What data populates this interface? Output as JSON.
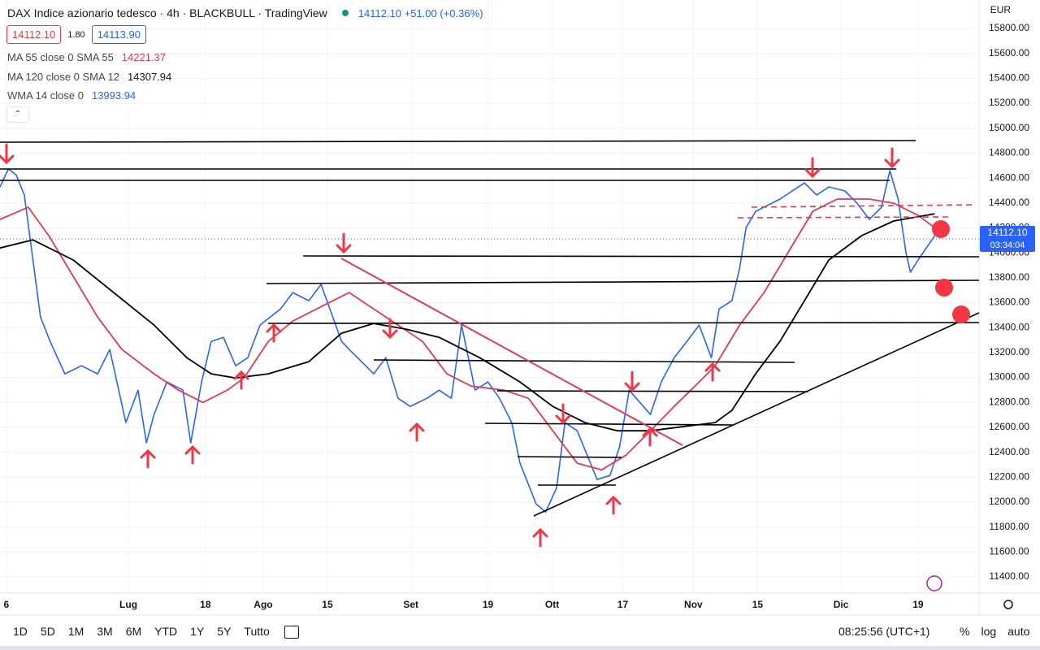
{
  "header": {
    "title": "DAX Indice azionario tedesco · 4h · BLACKBULL · TradingView",
    "quote": "14112.10 +51.00 (+0.36%)",
    "bid": "14112.10",
    "spread": "1.80",
    "ask": "14113.90"
  },
  "indicators": [
    {
      "label": "MA 55 close 0 SMA 55",
      "value": "14221.37"
    },
    {
      "label": "MA 120 close 0 SMA 12",
      "value": "14307.94"
    },
    {
      "label": "WMA 14 close 0",
      "value": "13993.94"
    }
  ],
  "currency": "EUR",
  "toolbar": {
    "ranges": [
      "1D",
      "5D",
      "1M",
      "3M",
      "6M",
      "YTD",
      "1Y",
      "5Y",
      "Tutto"
    ],
    "clock": "08:25:56 (UTC+1)",
    "options": [
      "%",
      "log",
      "auto"
    ]
  },
  "chart_data": {
    "type": "line",
    "ylim": [
      11270,
      16028
    ],
    "yticks": [
      {
        "value": 11400,
        "label": "11400.00"
      },
      {
        "value": 11600,
        "label": "11600.00"
      },
      {
        "value": 11800,
        "label": "11800.00"
      },
      {
        "value": 12000,
        "label": "12000.00"
      },
      {
        "value": 12200,
        "label": "12200.00"
      },
      {
        "value": 12400,
        "label": "12400.00"
      },
      {
        "value": 12600,
        "label": "12600.00"
      },
      {
        "value": 12800,
        "label": "12800.00"
      },
      {
        "value": 13000,
        "label": "13000.00"
      },
      {
        "value": 13200,
        "label": "13200.00"
      },
      {
        "value": 13400,
        "label": "13400.00"
      },
      {
        "value": 13600,
        "label": "13600.00"
      },
      {
        "value": 13800,
        "label": "13800.00"
      },
      {
        "value": 14000,
        "label": "14000.00"
      },
      {
        "value": 14200,
        "label": "14200.00"
      },
      {
        "value": 14400,
        "label": "14400.00"
      },
      {
        "value": 14600,
        "label": "14600.00"
      },
      {
        "value": 14800,
        "label": "14800.00"
      },
      {
        "value": 15000,
        "label": "15000.00"
      },
      {
        "value": 15200,
        "label": "15200.00"
      },
      {
        "value": 15400,
        "label": "15400.00"
      },
      {
        "value": 15600,
        "label": "15600.00"
      },
      {
        "value": 15800,
        "label": "15800.00"
      }
    ],
    "xlim": [
      -1,
      151.5
    ],
    "xticks": [
      {
        "value": 0,
        "label": "6"
      },
      {
        "value": 19,
        "label": "Lug"
      },
      {
        "value": 31,
        "label": "18"
      },
      {
        "value": 40,
        "label": "Ago"
      },
      {
        "value": 50,
        "label": "15"
      },
      {
        "value": 63,
        "label": "Set"
      },
      {
        "value": 75,
        "label": "19"
      },
      {
        "value": 85,
        "label": "Ott"
      },
      {
        "value": 96,
        "label": "17"
      },
      {
        "value": 107,
        "label": "Nov"
      },
      {
        "value": 117,
        "label": "15"
      },
      {
        "value": 130,
        "label": "Dic"
      },
      {
        "value": 142,
        "label": "19"
      }
    ],
    "last_price": 14112.1,
    "price_label": "14112.10",
    "countdown": "03:34:04",
    "series": [
      {
        "name": "DAX",
        "color": "#2962ff",
        "width": 1.6,
        "x": [
          -1,
          0.3,
          1.5,
          2.8,
          4.3,
          5.3,
          6.8,
          9.1,
          11.7,
          14.2,
          16.1,
          18.6,
          20.5,
          21.8,
          23,
          25,
          27.5,
          28.7,
          30.4,
          31.9,
          33.8,
          35.7,
          37.6,
          39.5,
          42.7,
          44.6,
          47.1,
          49,
          52.2,
          53.4,
          55.3,
          57.2,
          59.1,
          61,
          62.9,
          65.5,
          67.4,
          69.3,
          70.9,
          73,
          75,
          76.8,
          78.7,
          80,
          82.5,
          84,
          85.7,
          87,
          88.9,
          92,
          94,
          95.5,
          97,
          100.3,
          102,
          104,
          106,
          107.9,
          109.8,
          111,
          113,
          114.2,
          115.2,
          116.7,
          120.5,
          124.3,
          126.2,
          128.1,
          130.6,
          132.5,
          134.4,
          136.3,
          137.6,
          138.9,
          140.1,
          140.8,
          142,
          144.6
        ],
        "values": [
          14528,
          14672,
          14626,
          14463,
          13876,
          13485,
          13290,
          13029,
          13094,
          13029,
          13224,
          12638,
          12898,
          12475,
          12703,
          12964,
          12898,
          12475,
          12964,
          13290,
          13322,
          13094,
          13159,
          13420,
          13550,
          13681,
          13616,
          13746,
          13290,
          13224,
          13127,
          13029,
          13159,
          12833,
          12768,
          12833,
          12898,
          12833,
          13420,
          12898,
          12964,
          12833,
          12638,
          12312,
          11986,
          11920,
          12116,
          12638,
          12572,
          12181,
          12214,
          12442,
          12898,
          12703,
          12964,
          13159,
          13290,
          13420,
          13159,
          13550,
          13616,
          13876,
          14202,
          14333,
          14431,
          14561,
          14463,
          14528,
          14496,
          14398,
          14268,
          14365,
          14659,
          14431,
          14007,
          13844,
          13942,
          14137
        ]
      },
      {
        "name": "MA 55",
        "color": "#e53950",
        "width": 1.8,
        "x": [
          -1,
          3.4,
          6.6,
          10.4,
          14.2,
          18,
          23,
          26.8,
          30.6,
          34.4,
          37,
          40.8,
          44.6,
          49.6,
          53.4,
          57.2,
          61,
          64.8,
          68.6,
          72.4,
          77.5,
          81.3,
          85.1,
          88.9,
          92.7,
          96.5,
          100.3,
          104,
          107.9,
          110.4,
          114.2,
          118,
          121.8,
          125.6,
          129.4,
          134.4,
          138.2,
          142,
          144.6
        ],
        "values": [
          14268,
          14365,
          14137,
          13811,
          13485,
          13224,
          13029,
          12898,
          12800,
          12898,
          12996,
          13290,
          13452,
          13583,
          13681,
          13550,
          13420,
          13290,
          13029,
          12931,
          12898,
          12833,
          12572,
          12312,
          12259,
          12377,
          12572,
          12768,
          12964,
          13094,
          13420,
          13681,
          14007,
          14333,
          14431,
          14431,
          14398,
          14300,
          14202
        ]
      },
      {
        "name": "MA 120",
        "color": "#000000",
        "width": 1.8,
        "x": [
          -1,
          4.1,
          10.4,
          16.7,
          23,
          28.1,
          31.9,
          35.7,
          40.8,
          47.1,
          52.2,
          57.2,
          62.3,
          67.4,
          73.7,
          80,
          85.1,
          90.1,
          95.2,
          100.3,
          105.3,
          110.4,
          113,
          116.7,
          120.5,
          124.3,
          128.1,
          133.2,
          138.2,
          144.6
        ],
        "values": [
          14039,
          14104,
          13942,
          13681,
          13420,
          13159,
          13029,
          12996,
          13029,
          13127,
          13355,
          13433,
          13387,
          13322,
          13159,
          12964,
          12768,
          12638,
          12572,
          12572,
          12605,
          12638,
          12736,
          13029,
          13290,
          13616,
          13942,
          14137,
          14255,
          14313
        ]
      }
    ]
  }
}
